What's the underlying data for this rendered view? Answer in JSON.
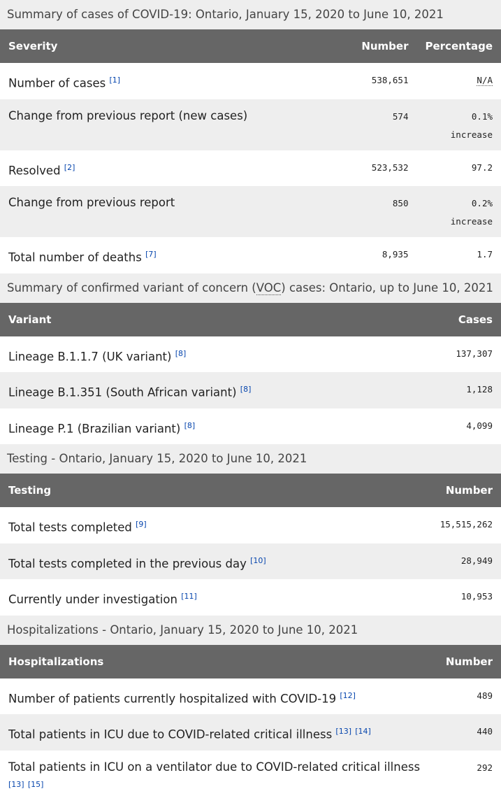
{
  "tables": [
    {
      "caption": "Summary of cases of COVID-19: Ontario, January 15, 2020 to June 10, 2021",
      "headers": [
        "Severity",
        "Number",
        "Percentage"
      ],
      "rows": [
        {
          "label": "Number of cases",
          "refs": [
            "[1]"
          ],
          "number": "538,651",
          "pct": "N/A",
          "pct_abbr": true
        },
        {
          "label": "Change from previous report (new cases)",
          "refs": [],
          "number": "574",
          "pct": "0.1%",
          "pct_sub": "increase"
        },
        {
          "label": "Resolved",
          "refs": [
            "[2]"
          ],
          "number": "523,532",
          "pct": "97.2"
        },
        {
          "label": "Change from previous report",
          "refs": [],
          "number": "850",
          "pct": "0.2%",
          "pct_sub": "increase"
        },
        {
          "label": "Total number of deaths",
          "refs": [
            "[7]"
          ],
          "number": "8,935",
          "pct": "1.7"
        }
      ]
    },
    {
      "caption_parts": [
        "Summary of confirmed variant of concern (",
        "VOC",
        ") cases: Ontario, up to June 10, 2021"
      ],
      "headers": [
        "Variant",
        "Cases"
      ],
      "rows": [
        {
          "label": "Lineage B.1.1.7 (UK variant)",
          "refs": [
            "[8]"
          ],
          "number": "137,307"
        },
        {
          "label": "Lineage B.1.351 (South African variant)",
          "refs": [
            "[8]"
          ],
          "number": "1,128"
        },
        {
          "label": "Lineage P.1 (Brazilian variant)",
          "refs": [
            "[8]"
          ],
          "number": "4,099"
        }
      ]
    },
    {
      "caption": "Testing - Ontario, January 15, 2020 to June 10, 2021",
      "headers": [
        "Testing",
        "Number"
      ],
      "rows": [
        {
          "label": "Total tests completed",
          "refs": [
            "[9]"
          ],
          "number": "15,515,262"
        },
        {
          "label": "Total tests completed in the previous day",
          "refs": [
            "[10]"
          ],
          "number": "28,949"
        },
        {
          "label": "Currently under investigation",
          "refs": [
            "[11]"
          ],
          "number": "10,953"
        }
      ]
    },
    {
      "caption": "Hospitalizations - Ontario, January 15, 2020 to June 10, 2021",
      "headers": [
        "Hospitalizations",
        "Number"
      ],
      "rows": [
        {
          "label": "Number of patients currently hospitalized with COVID-19",
          "refs": [
            "[12]"
          ],
          "number": "489"
        },
        {
          "label": "Total patients in ICU due to COVID-related critical illness",
          "refs": [
            "[13]",
            "[14]"
          ],
          "number": "440"
        },
        {
          "label": "Total patients in ICU on a ventilator due to COVID-related critical illness",
          "refs": [
            "[13]",
            "[15]"
          ],
          "number": "292"
        }
      ]
    }
  ]
}
